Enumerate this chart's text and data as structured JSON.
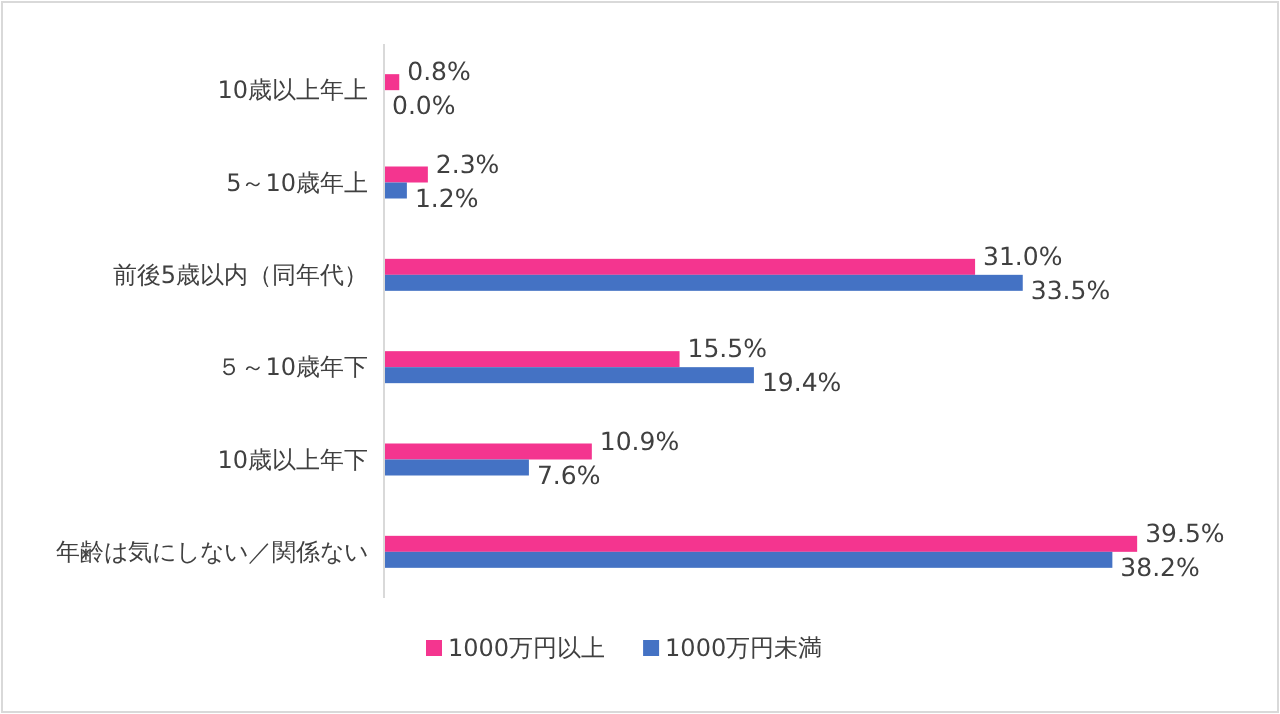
{
  "chart_data": {
    "type": "bar",
    "orientation": "horizontal",
    "categories": [
      "10歳以上年上",
      "5～10歳年上",
      "前後5歳以内（同年代）",
      "５～10歳年下",
      "10歳以上年下",
      "年齢は気にしない／関係ない"
    ],
    "series": [
      {
        "name": "1000万円以上",
        "color": "#f4358f",
        "values": [
          0.8,
          2.3,
          31.0,
          15.5,
          10.9,
          39.5
        ],
        "value_labels": [
          "0.8%",
          "2.3%",
          "31.0%",
          "15.5%",
          "10.9%",
          "39.5%"
        ]
      },
      {
        "name": "1000万円未満",
        "color": "#4472c4",
        "values": [
          0.0,
          1.2,
          33.5,
          19.4,
          7.6,
          38.2
        ],
        "value_labels": [
          "0.0%",
          "1.2%",
          "33.5%",
          "19.4%",
          "7.6%",
          "38.2%"
        ]
      }
    ],
    "legend": "bottom"
  }
}
